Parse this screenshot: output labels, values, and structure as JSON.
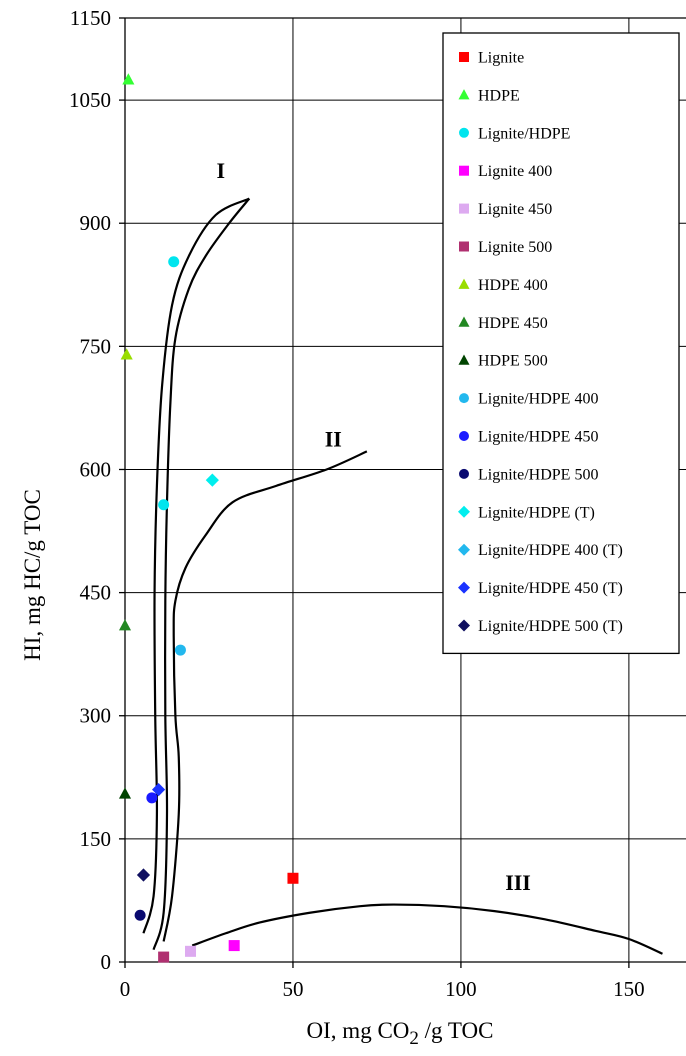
{
  "chart_data": {
    "type": "scatter",
    "title": "",
    "xlabel": {
      "main": "OI, mg CO",
      "sub": "2",
      "tail": " /g TOC"
    },
    "ylabel": "HI, mg HC/g TOC",
    "xlim": [
      0,
      167
    ],
    "ylim": [
      0,
      1150
    ],
    "x_ticks": [
      0,
      50,
      100,
      150
    ],
    "y_ticks": [
      0,
      150,
      300,
      450,
      600,
      750,
      900,
      1050,
      1150
    ],
    "grid": true,
    "legend_position": "top-right",
    "series": [
      {
        "name": "Lignite",
        "marker": "square",
        "color": "#ff0000",
        "points": [
          [
            50,
            102
          ]
        ]
      },
      {
        "name": "HDPE",
        "marker": "triangle",
        "color": "#33ff33",
        "points": [
          [
            1,
            1075
          ]
        ]
      },
      {
        "name": "Lignite/HDPE",
        "marker": "circle",
        "color": "#00e5ee",
        "points": [
          [
            14.5,
            853
          ],
          [
            11.5,
            557
          ]
        ]
      },
      {
        "name": "Lignite 400",
        "marker": "square",
        "color": "#ff00ff",
        "points": [
          [
            32.5,
            20
          ]
        ]
      },
      {
        "name": "Lignite 450",
        "marker": "square",
        "color": "#ddaaf0",
        "points": [
          [
            19.5,
            13
          ]
        ]
      },
      {
        "name": "Lignite 500",
        "marker": "square",
        "color": "#b03070",
        "points": [
          [
            11.5,
            6
          ]
        ]
      },
      {
        "name": "HDPE 400",
        "marker": "triangle",
        "color": "#99dd00",
        "points": [
          [
            0.5,
            740
          ]
        ]
      },
      {
        "name": "HDPE 450",
        "marker": "triangle",
        "color": "#228822",
        "points": [
          [
            0,
            410
          ]
        ]
      },
      {
        "name": "HDPE 500",
        "marker": "triangle",
        "color": "#004400",
        "points": [
          [
            0,
            205
          ]
        ]
      },
      {
        "name": "Lignite/HDPE 400",
        "marker": "circle",
        "color": "#22b8ee",
        "points": [
          [
            16.5,
            380
          ]
        ]
      },
      {
        "name": "Lignite/HDPE 450",
        "marker": "circle",
        "color": "#1a1aff",
        "points": [
          [
            8,
            200
          ]
        ]
      },
      {
        "name": "Lignite/HDPE 500",
        "marker": "circle",
        "color": "#0a0a70",
        "points": [
          [
            4.5,
            57
          ]
        ]
      },
      {
        "name": "Lignite/HDPE (T)",
        "marker": "diamond",
        "color": "#00eeee",
        "points": [
          [
            26,
            587
          ]
        ]
      },
      {
        "name": "Lignite/HDPE 400 (T)",
        "marker": "diamond",
        "color": "#22b8ee",
        "points": []
      },
      {
        "name": "Lignite/HDPE 450 (T)",
        "marker": "diamond",
        "color": "#1a33ff",
        "points": [
          [
            10,
            210
          ]
        ]
      },
      {
        "name": "Lignite/HDPE 500 (T)",
        "marker": "diamond",
        "color": "#101060",
        "points": [
          [
            5.5,
            106
          ]
        ]
      }
    ],
    "curves": [
      {
        "label": "I",
        "label_at": [
          28.5,
          955
        ],
        "points": [
          [
            5.5,
            35
          ],
          [
            8.5,
            80
          ],
          [
            9.5,
            180
          ],
          [
            9,
            300
          ],
          [
            8.8,
            450
          ],
          [
            9.5,
            580
          ],
          [
            11,
            700
          ],
          [
            14,
            800
          ],
          [
            19,
            860
          ],
          [
            27,
            910
          ],
          [
            37,
            930
          ]
        ]
      },
      {
        "label": "I",
        "label_at": null,
        "points": [
          [
            8.5,
            15
          ],
          [
            11.5,
            60
          ],
          [
            12.5,
            180
          ],
          [
            12,
            300
          ],
          [
            12,
            440
          ],
          [
            12.5,
            560
          ],
          [
            13.5,
            680
          ],
          [
            15,
            760
          ],
          [
            19,
            820
          ],
          [
            24,
            860
          ],
          [
            31,
            900
          ],
          [
            37,
            930
          ]
        ]
      },
      {
        "label": "II",
        "label_at": [
          62,
          628
        ],
        "points": [
          [
            11.5,
            25
          ],
          [
            14,
            80
          ],
          [
            16,
            180
          ],
          [
            16,
            250
          ],
          [
            15,
            300
          ],
          [
            14.5,
            400
          ],
          [
            15,
            440
          ],
          [
            18,
            480
          ],
          [
            24,
            520
          ],
          [
            32,
            560
          ],
          [
            45,
            580
          ],
          [
            60,
            600
          ],
          [
            72,
            622
          ]
        ]
      },
      {
        "label": "III",
        "label_at": [
          117,
          88
        ],
        "points": [
          [
            20,
            20
          ],
          [
            30,
            35
          ],
          [
            40,
            48
          ],
          [
            55,
            60
          ],
          [
            70,
            68
          ],
          [
            80,
            70
          ],
          [
            95,
            68
          ],
          [
            110,
            62
          ],
          [
            125,
            52
          ],
          [
            140,
            38
          ],
          [
            150,
            28
          ],
          [
            160,
            10
          ]
        ]
      }
    ]
  }
}
